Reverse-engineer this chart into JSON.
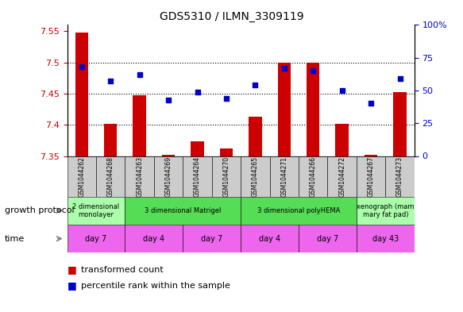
{
  "title": "GDS5310 / ILMN_3309119",
  "samples": [
    "GSM1044262",
    "GSM1044268",
    "GSM1044263",
    "GSM1044269",
    "GSM1044264",
    "GSM1044270",
    "GSM1044265",
    "GSM1044271",
    "GSM1044266",
    "GSM1044272",
    "GSM1044267",
    "GSM1044273"
  ],
  "bar_values": [
    7.548,
    7.401,
    7.447,
    7.352,
    7.374,
    7.362,
    7.413,
    7.5,
    7.5,
    7.401,
    7.352,
    7.452
  ],
  "dot_values": [
    68,
    57,
    62,
    43,
    49,
    44,
    54,
    67,
    65,
    50,
    40,
    59
  ],
  "ylim_left": [
    7.35,
    7.56
  ],
  "ylim_right": [
    0,
    100
  ],
  "yticks_left": [
    7.35,
    7.4,
    7.45,
    7.5,
    7.55
  ],
  "yticks_right": [
    0,
    25,
    50,
    75,
    100
  ],
  "bar_color": "#cc0000",
  "dot_color": "#0000cc",
  "bar_bottom": 7.35,
  "grid_dotted_at": [
    7.4,
    7.45,
    7.5
  ],
  "protocol_groups": [
    {
      "label": "2 dimensional\nmonolayer",
      "start": 0,
      "end": 2,
      "color": "#aaffaa"
    },
    {
      "label": "3 dimensional Matrigel",
      "start": 2,
      "end": 6,
      "color": "#55dd55"
    },
    {
      "label": "3 dimensional polyHEMA",
      "start": 6,
      "end": 10,
      "color": "#55dd55"
    },
    {
      "label": "xenograph (mam\nmary fat pad)",
      "start": 10,
      "end": 12,
      "color": "#aaffaa"
    }
  ],
  "time_groups": [
    {
      "label": "day 7",
      "start": 0,
      "end": 2,
      "color": "#ee66ee"
    },
    {
      "label": "day 4",
      "start": 2,
      "end": 4,
      "color": "#ee66ee"
    },
    {
      "label": "day 7",
      "start": 4,
      "end": 6,
      "color": "#ee66ee"
    },
    {
      "label": "day 4",
      "start": 6,
      "end": 8,
      "color": "#ee66ee"
    },
    {
      "label": "day 7",
      "start": 8,
      "end": 10,
      "color": "#ee66ee"
    },
    {
      "label": "day 43",
      "start": 10,
      "end": 12,
      "color": "#ee66ee"
    }
  ],
  "left_tick_color": "#cc0000",
  "right_tick_color": "#0000cc",
  "sample_bg": "#cccccc",
  "white": "#ffffff",
  "legend_bar_label": "transformed count",
  "legend_dot_label": "percentile rank within the sample",
  "growth_protocol_label": "growth protocol",
  "time_label": "time"
}
